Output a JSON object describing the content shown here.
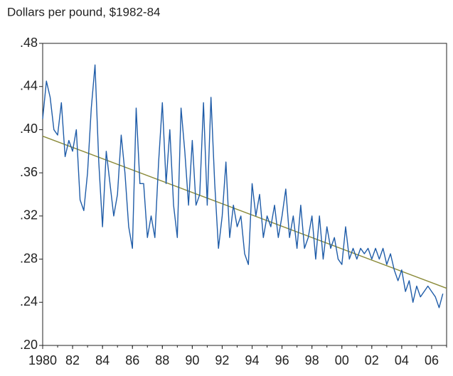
{
  "chart_data": {
    "type": "line",
    "title": "Dollars per pound, $1982-84",
    "xlim": [
      1980,
      2007
    ],
    "ylim": [
      0.2,
      0.48
    ],
    "yticks": [
      {
        "value": 0.2,
        "label": ".20"
      },
      {
        "value": 0.24,
        "label": ".24"
      },
      {
        "value": 0.28,
        "label": ".28"
      },
      {
        "value": 0.32,
        "label": ".32"
      },
      {
        "value": 0.36,
        "label": ".36"
      },
      {
        "value": 0.4,
        "label": ".40"
      },
      {
        "value": 0.44,
        "label": ".44"
      },
      {
        "value": 0.48,
        "label": ".48"
      }
    ],
    "xticks": [
      1980,
      {
        "value": 1982,
        "label": "82"
      },
      {
        "value": 1984,
        "label": "84"
      },
      {
        "value": 1986,
        "label": "86"
      },
      {
        "value": 1988,
        "label": "88"
      },
      {
        "value": 1990,
        "label": "90"
      },
      {
        "value": 1992,
        "label": "92"
      },
      {
        "value": 1994,
        "label": "94"
      },
      {
        "value": 1996,
        "label": "96"
      },
      {
        "value": 1998,
        "label": "98"
      },
      {
        "value": 2000,
        "label": "00"
      },
      {
        "value": 2002,
        "label": "02"
      },
      {
        "value": 2004,
        "label": "04"
      },
      {
        "value": 2006,
        "label": "06"
      }
    ],
    "series": [
      {
        "color": "#1f5ca8",
        "x": [
          1980,
          1980.25,
          1980.5,
          1980.75,
          1981,
          1981.25,
          1981.5,
          1981.75,
          1982,
          1982.25,
          1982.5,
          1982.75,
          1983,
          1983.25,
          1983.5,
          1983.75,
          1984,
          1984.25,
          1984.5,
          1984.75,
          1985,
          1985.25,
          1985.5,
          1985.75,
          1986,
          1986.25,
          1986.5,
          1986.75,
          1987,
          1987.25,
          1987.5,
          1987.75,
          1988,
          1988.25,
          1988.5,
          1988.75,
          1989,
          1989.25,
          1989.5,
          1989.75,
          1990,
          1990.25,
          1990.5,
          1990.75,
          1991,
          1991.25,
          1991.5,
          1991.75,
          1992,
          1992.25,
          1992.5,
          1992.75,
          1993,
          1993.25,
          1993.5,
          1993.75,
          1994,
          1994.25,
          1994.5,
          1994.75,
          1995,
          1995.25,
          1995.5,
          1995.75,
          1996,
          1996.25,
          1996.5,
          1996.75,
          1997,
          1997.25,
          1997.5,
          1997.75,
          1998,
          1998.25,
          1998.5,
          1998.75,
          1999,
          1999.25,
          1999.5,
          1999.75,
          2000,
          2000.25,
          2000.5,
          2000.75,
          2001,
          2001.25,
          2001.5,
          2001.75,
          2002,
          2002.25,
          2002.5,
          2002.75,
          2003,
          2003.25,
          2003.5,
          2003.75,
          2004,
          2004.25,
          2004.5,
          2004.75,
          2005,
          2005.25,
          2005.5,
          2005.75,
          2006,
          2006.25,
          2006.5,
          2006.75
        ],
        "values": [
          0.41,
          0.445,
          0.43,
          0.4,
          0.395,
          0.425,
          0.375,
          0.39,
          0.38,
          0.4,
          0.335,
          0.325,
          0.36,
          0.42,
          0.46,
          0.37,
          0.31,
          0.38,
          0.35,
          0.32,
          0.34,
          0.395,
          0.36,
          0.31,
          0.29,
          0.42,
          0.35,
          0.35,
          0.3,
          0.32,
          0.3,
          0.37,
          0.425,
          0.35,
          0.4,
          0.33,
          0.3,
          0.42,
          0.38,
          0.33,
          0.39,
          0.33,
          0.34,
          0.425,
          0.33,
          0.43,
          0.35,
          0.29,
          0.32,
          0.37,
          0.3,
          0.33,
          0.31,
          0.32,
          0.285,
          0.275,
          0.35,
          0.32,
          0.34,
          0.3,
          0.32,
          0.31,
          0.33,
          0.3,
          0.32,
          0.345,
          0.3,
          0.32,
          0.29,
          0.33,
          0.29,
          0.3,
          0.32,
          0.28,
          0.32,
          0.28,
          0.31,
          0.29,
          0.3,
          0.28,
          0.275,
          0.31,
          0.28,
          0.29,
          0.28,
          0.29,
          0.285,
          0.29,
          0.28,
          0.29,
          0.28,
          0.29,
          0.275,
          0.285,
          0.27,
          0.26,
          0.27,
          0.25,
          0.26,
          0.24,
          0.255,
          0.245,
          0.25,
          0.255,
          0.25,
          0.245,
          0.235,
          0.248
        ]
      },
      {
        "color": "#8a8a38",
        "x": [
          1980,
          2007
        ],
        "values": [
          0.394,
          0.253
        ]
      }
    ]
  }
}
